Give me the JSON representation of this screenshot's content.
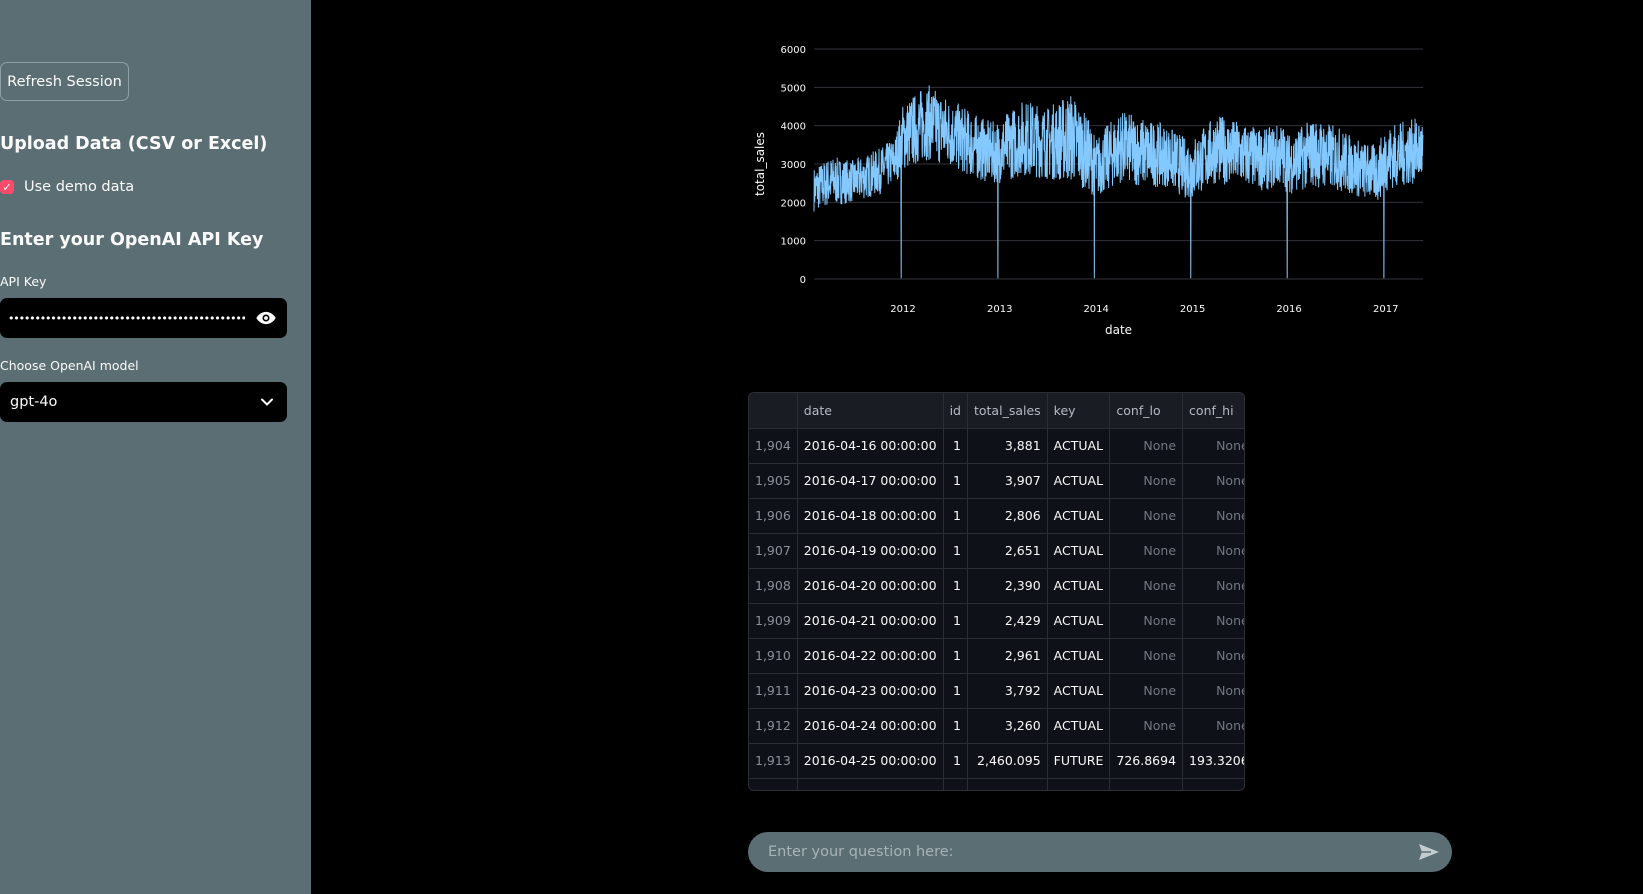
{
  "sidebar": {
    "refresh_button": "Refresh Session",
    "upload_heading": "Upload Data (CSV or Excel)",
    "demo_checkbox": {
      "label": "Use demo data",
      "checked": true
    },
    "api_heading": "Enter your OpenAI API Key",
    "api_label": "API Key",
    "api_masked": "••••••••••••••••••••••••••••••••••••••••••••••••••••••••••••",
    "model_label": "Choose OpenAI model",
    "model_value": "gpt-4o"
  },
  "chart_data": {
    "type": "line",
    "xlabel": "date",
    "ylabel": "total_sales",
    "x_range": [
      "2011-01-29",
      "2017-05-22"
    ],
    "ylim": [
      0,
      6000
    ],
    "y_ticks": [
      0,
      1000,
      2000,
      3000,
      4000,
      5000,
      6000
    ],
    "x_ticks": [
      "2012",
      "2013",
      "2014",
      "2015",
      "2016",
      "2017"
    ],
    "grid": true,
    "color": "#83c9ff",
    "series": [
      {
        "x": [
          "2011-01",
          "2011-04",
          "2011-07",
          "2011-10",
          "2011-12",
          "2012-01",
          "2012-04",
          "2012-07",
          "2012-10",
          "2012-12",
          "2013-01",
          "2013-04",
          "2013-07",
          "2013-10",
          "2013-12",
          "2014-01",
          "2014-04",
          "2014-07",
          "2014-10",
          "2014-12",
          "2015-01",
          "2015-04",
          "2015-07",
          "2015-10",
          "2015-12",
          "2016-01",
          "2016-04",
          "2016-07",
          "2016-10",
          "2016-12",
          "2017-01",
          "2017-03",
          "2017-05"
        ],
        "y": [
          2300,
          2600,
          2500,
          2800,
          3100,
          3600,
          4000,
          3800,
          3500,
          3300,
          3300,
          3700,
          3600,
          3400,
          3200,
          3000,
          3500,
          3400,
          3300,
          2900,
          3000,
          3500,
          3300,
          3200,
          3300,
          3100,
          3400,
          3300,
          3000,
          2900,
          3300,
          3400,
          3500
        ],
        "low_range": [
          1700,
          1900,
          2000,
          2200,
          2500,
          2800,
          3100,
          2900,
          2600,
          2500,
          2500,
          2700,
          2600,
          2500,
          2300,
          2100,
          2500,
          2400,
          2400,
          2100,
          2100,
          2500,
          2400,
          2300,
          2400,
          2200,
          2400,
          2300,
          2100,
          2000,
          2300,
          2400,
          2500
        ],
        "high_range": [
          2800,
          3200,
          3100,
          3400,
          3700,
          4600,
          5100,
          4700,
          4300,
          4100,
          4200,
          4700,
          4500,
          4900,
          4200,
          3700,
          4400,
          4200,
          4000,
          3700,
          3700,
          4300,
          4100,
          3900,
          4100,
          3800,
          4200,
          4000,
          3600,
          3500,
          4000,
          4100,
          4200
        ]
      }
    ]
  },
  "table": {
    "columns": [
      "",
      "date",
      "id",
      "total_sales",
      "key",
      "conf_lo",
      "conf_hi"
    ],
    "rows": [
      [
        "1,904",
        "2016-04-16 00:00:00",
        "1",
        "3,881",
        "ACTUAL",
        "None",
        "None"
      ],
      [
        "1,905",
        "2016-04-17 00:00:00",
        "1",
        "3,907",
        "ACTUAL",
        "None",
        "None"
      ],
      [
        "1,906",
        "2016-04-18 00:00:00",
        "1",
        "2,806",
        "ACTUAL",
        "None",
        "None"
      ],
      [
        "1,907",
        "2016-04-19 00:00:00",
        "1",
        "2,651",
        "ACTUAL",
        "None",
        "None"
      ],
      [
        "1,908",
        "2016-04-20 00:00:00",
        "1",
        "2,390",
        "ACTUAL",
        "None",
        "None"
      ],
      [
        "1,909",
        "2016-04-21 00:00:00",
        "1",
        "2,429",
        "ACTUAL",
        "None",
        "None"
      ],
      [
        "1,910",
        "2016-04-22 00:00:00",
        "1",
        "2,961",
        "ACTUAL",
        "None",
        "None"
      ],
      [
        "1,911",
        "2016-04-23 00:00:00",
        "1",
        "3,792",
        "ACTUAL",
        "None",
        "None"
      ],
      [
        "1,912",
        "2016-04-24 00:00:00",
        "1",
        "3,260",
        "ACTUAL",
        "None",
        "None"
      ],
      [
        "1,913",
        "2016-04-25 00:00:00",
        "1",
        "2,460.095",
        "FUTURE",
        "726.8694",
        "193.3206"
      ]
    ]
  },
  "chat": {
    "placeholder": "Enter your question here:"
  }
}
